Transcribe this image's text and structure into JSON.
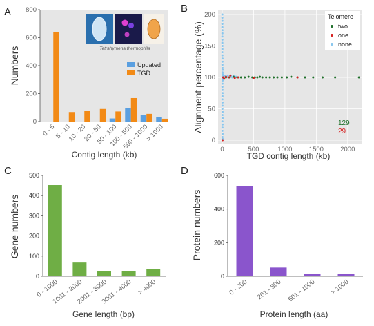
{
  "panel_labels": {
    "a": "A",
    "b": "B",
    "c": "C",
    "d": "D"
  },
  "colors": {
    "tgd": "#f28a16",
    "updated": "#5a9fe0",
    "gene": "#6fae45",
    "protein": "#8a55cc",
    "two": "#1f6f2a",
    "one": "#d62020",
    "none": "#88c6ee"
  },
  "image_caption": "Tetrahymena thermophila",
  "counts_annotation": [
    {
      "text": "129",
      "color": "#1f6f2a"
    },
    {
      "text": "29",
      "color": "#d62020"
    }
  ],
  "chart_data": [
    {
      "type": "bar",
      "xlabel": "Contig length (kb)",
      "ylabel": "Numbers",
      "ylim": [
        0,
        800
      ],
      "yticks": [
        0,
        200,
        400,
        600,
        800
      ],
      "categories": [
        "0 - 5",
        "5 - 10",
        "10 - 20",
        "20 - 50",
        "50 - 100",
        "100 - 500",
        "500 - 1000",
        "> 1000"
      ],
      "series": [
        {
          "name": "Updated",
          "values": [
            0,
            0,
            0,
            0,
            22,
            95,
            45,
            33
          ]
        },
        {
          "name": "TGD",
          "values": [
            642,
            68,
            79,
            90,
            72,
            168,
            55,
            20
          ]
        }
      ],
      "legend": "top-right",
      "grid": false
    },
    {
      "type": "scatter",
      "xlabel": "TGD contig length (kb)",
      "ylabel": "Alignment percentage (%)",
      "xlim": [
        0,
        2200
      ],
      "ylim": [
        0,
        200
      ],
      "xticks": [
        0,
        500,
        1000,
        1500,
        2000
      ],
      "yticks": [
        0,
        50,
        100,
        150,
        200
      ],
      "legend_title": "Telomere",
      "legend": "top-right",
      "grid": true,
      "series": [
        {
          "name": "two",
          "points": [
            [
              20,
              100
            ],
            [
              60,
              100
            ],
            [
              120,
              100
            ],
            [
              180,
              101
            ],
            [
              240,
              100
            ],
            [
              300,
              100
            ],
            [
              360,
              100
            ],
            [
              420,
              101
            ],
            [
              480,
              100
            ],
            [
              520,
              100
            ],
            [
              560,
              100
            ],
            [
              600,
              101
            ],
            [
              640,
              100
            ],
            [
              700,
              100
            ],
            [
              760,
              100
            ],
            [
              820,
              100
            ],
            [
              880,
              100
            ],
            [
              950,
              100
            ],
            [
              1030,
              100
            ],
            [
              1100,
              101
            ],
            [
              1200,
              100
            ],
            [
              1320,
              100
            ],
            [
              1450,
              100
            ],
            [
              1600,
              100
            ],
            [
              1800,
              100
            ],
            [
              2180,
              100
            ]
          ]
        },
        {
          "name": "one",
          "points": [
            [
              5,
              0
            ],
            [
              15,
              100
            ],
            [
              30,
              98
            ],
            [
              60,
              101
            ],
            [
              100,
              100
            ],
            [
              130,
              103
            ],
            [
              200,
              99
            ],
            [
              260,
              100
            ],
            [
              500,
              99
            ],
            [
              1200,
              100
            ]
          ]
        },
        {
          "name": "none",
          "points": [
            [
              2,
              200
            ],
            [
              2,
              195
            ],
            [
              3,
              190
            ],
            [
              2,
              185
            ],
            [
              2,
              180
            ],
            [
              4,
              175
            ],
            [
              3,
              170
            ],
            [
              2,
              165
            ],
            [
              3,
              160
            ],
            [
              2,
              155
            ],
            [
              4,
              150
            ],
            [
              3,
              145
            ],
            [
              2,
              140
            ],
            [
              3,
              135
            ],
            [
              5,
              130
            ],
            [
              4,
              125
            ],
            [
              3,
              120
            ],
            [
              6,
              115
            ],
            [
              8,
              112
            ],
            [
              5,
              108
            ],
            [
              9,
              105
            ],
            [
              12,
              103
            ],
            [
              6,
              100
            ],
            [
              10,
              98
            ],
            [
              14,
              96
            ],
            [
              7,
              94
            ],
            [
              4,
              90
            ],
            [
              3,
              85
            ],
            [
              5,
              80
            ],
            [
              6,
              75
            ],
            [
              4,
              70
            ],
            [
              3,
              65
            ],
            [
              5,
              60
            ],
            [
              4,
              55
            ],
            [
              3,
              50
            ],
            [
              5,
              45
            ],
            [
              4,
              40
            ],
            [
              6,
              35
            ],
            [
              3,
              30
            ],
            [
              5,
              25
            ],
            [
              4,
              20
            ],
            [
              3,
              15
            ],
            [
              5,
              10
            ],
            [
              4,
              5
            ],
            [
              6,
              2
            ],
            [
              40,
              102
            ],
            [
              70,
              101
            ],
            [
              90,
              103
            ],
            [
              140,
              102
            ],
            [
              160,
              100
            ],
            [
              190,
              102
            ],
            [
              220,
              101
            ]
          ]
        }
      ]
    },
    {
      "type": "bar",
      "xlabel": "Gene length (bp)",
      "ylabel": "Gene numbers",
      "ylim": [
        0,
        500
      ],
      "yticks": [
        0,
        100,
        200,
        300,
        400,
        500
      ],
      "categories": [
        "0 - 1000",
        "1001 - 2000",
        "2001 - 3000",
        "3001 - 4000",
        "> 4000"
      ],
      "values": [
        452,
        68,
        24,
        27,
        36
      ],
      "grid": false
    },
    {
      "type": "bar",
      "xlabel": "Protein length (aa)",
      "ylabel": "Protein numbers",
      "ylim": [
        0,
        600
      ],
      "yticks": [
        0,
        200,
        400,
        600
      ],
      "categories": [
        "0 - 200",
        "201 - 500",
        "501 - 1000",
        "> 1000"
      ],
      "values": [
        535,
        52,
        15,
        15
      ],
      "grid": false
    }
  ]
}
